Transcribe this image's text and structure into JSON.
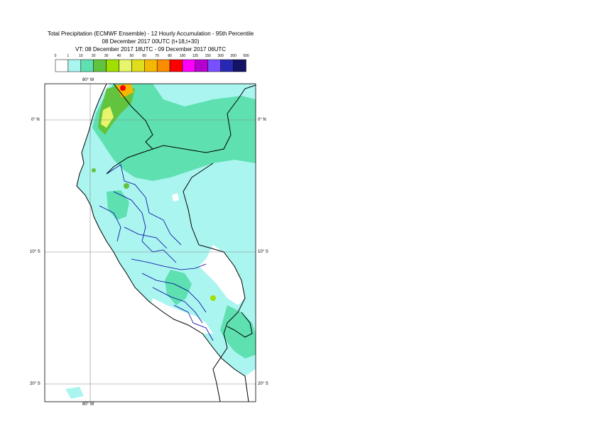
{
  "title": {
    "line1": "Total Precipitation (ECMWF Ensemble) - 12 Hourly Accumulation - 95th Percentile",
    "line2": "08 December 2017 00UTC (t+18,t+30)",
    "line3": "VT: 08 December 2017 18UTC - 09 December 2017 06UTC"
  },
  "legend": {
    "ticks": [
      "0",
      "1",
      "10",
      "20",
      "30",
      "40",
      "50",
      "60",
      "70",
      "80",
      "100",
      "125",
      "150",
      "200",
      "300",
      "500"
    ],
    "colors": [
      "#ffffff",
      "#aaf5f0",
      "#5ee0b0",
      "#62c33e",
      "#9fe000",
      "#e6f56c",
      "#dede1e",
      "#f5b800",
      "#fa8c00",
      "#ff0000",
      "#ff00ff",
      "#b400d0",
      "#7850ff",
      "#2828b4",
      "#141464"
    ]
  },
  "map": {
    "lon_label_top": "80° W",
    "lon_label_bottom": "80° W",
    "lat_labels_left": [
      "0° N",
      "10° S",
      "20° S"
    ],
    "lat_labels_right": [
      "0° N",
      "10° S",
      "20° S"
    ],
    "colors": {
      "sea": "#ffffff",
      "light_precip": "#aaf5f0",
      "moderate_precip": "#5ee0b0",
      "coast": "#000000",
      "admin_border": "#0000a0",
      "grid": "#888888"
    }
  }
}
